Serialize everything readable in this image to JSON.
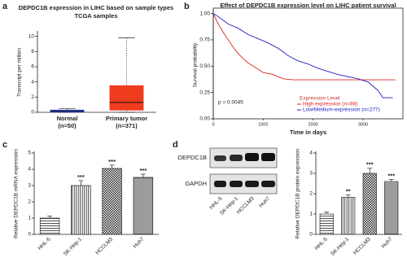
{
  "chart_data": [
    {
      "type": "box",
      "label": "a",
      "title": "DEPDC1B expression in LIHC based on sample types",
      "subtitle": "TCGA samples",
      "ylabel": "Transcript per million",
      "categories": [
        "Normal",
        "Primary tumor"
      ],
      "sample_sizes": [
        "(n=50)",
        "(n=371)"
      ],
      "boxes": [
        {
          "min": 0,
          "q1": 0.05,
          "median": 0.15,
          "q3": 0.28,
          "max": 0.5
        },
        {
          "min": 0,
          "q1": 0.3,
          "median": 1.3,
          "q3": 3.5,
          "max": 9.8
        }
      ],
      "colors": [
        "#2b3fc0",
        "#f03c1e"
      ],
      "ylim": [
        0,
        10.5
      ],
      "yticks": [
        0,
        2,
        4,
        6,
        8,
        10
      ]
    },
    {
      "type": "line",
      "label": "b",
      "title": "Effect of DEPDC1B expression level on LIHC patient survival",
      "xlabel": "Time in days",
      "ylabel": "Survival probability",
      "annotation": "p = 0.0045",
      "legend_title": "Expression Level",
      "series": [
        {
          "name": "High expression (n=88)",
          "color": "#e02020",
          "x": [
            0,
            100,
            200,
            300,
            400,
            500,
            600,
            700,
            800,
            900,
            1000,
            1200,
            1400,
            1600,
            2000,
            2500,
            3000,
            3650
          ],
          "values": [
            1,
            0.9,
            0.82,
            0.75,
            0.68,
            0.62,
            0.57,
            0.53,
            0.5,
            0.47,
            0.44,
            0.42,
            0.38,
            0.37,
            0.37,
            0.37,
            0.37,
            0.37
          ]
        },
        {
          "name": "Low/Medium-expression (n=277)",
          "color": "#2020c0",
          "x": [
            0,
            100,
            300,
            500,
            700,
            900,
            1100,
            1300,
            1500,
            1700,
            1900,
            2100,
            2300,
            2500,
            2700,
            2900,
            3100,
            3300,
            3400,
            3600
          ],
          "values": [
            1,
            0.97,
            0.9,
            0.86,
            0.8,
            0.76,
            0.72,
            0.67,
            0.6,
            0.55,
            0.52,
            0.48,
            0.45,
            0.42,
            0.4,
            0.38,
            0.35,
            0.27,
            0.2,
            0.2
          ]
        }
      ],
      "xlim": [
        0,
        3800
      ],
      "xticks": [
        0,
        1000,
        2000,
        3000
      ],
      "ylim": [
        0,
        1.02
      ],
      "yticks": [
        {
          "value": 0,
          "label": "0.00"
        },
        {
          "value": 0.25,
          "label": "0.25"
        },
        {
          "value": 0.5,
          "label": "0.50"
        },
        {
          "value": 0.75,
          "label": "0.75"
        },
        {
          "value": 1,
          "label": "1.00"
        }
      ]
    },
    {
      "type": "bar",
      "label": "c",
      "ylabel": "Relative DEPDC1B mRNA expression",
      "categories": [
        "HHL-5",
        "SK-Hep-1",
        "HCCLM3",
        "Huh7"
      ],
      "values": [
        1,
        3.0,
        4.05,
        3.5
      ],
      "errors": [
        0.12,
        0.3,
        0.2,
        0.2
      ],
      "significance": [
        null,
        "***",
        "***",
        "***"
      ],
      "ylim": [
        0,
        5
      ],
      "yticks": [
        0,
        1,
        2,
        3,
        4,
        5
      ]
    },
    {
      "type": "bar",
      "label": "d",
      "ylabel": "Relative DEPDC1B protein expression",
      "categories": [
        "HHL-5",
        "SK-Hep-1",
        "HCCLM3",
        "Huh7"
      ],
      "values": [
        1,
        1.82,
        3.0,
        2.6
      ],
      "errors": [
        0.1,
        0.12,
        0.25,
        0.1
      ],
      "significance": [
        null,
        "**",
        "***",
        "***"
      ],
      "blot": {
        "rows": [
          "DEPDC1B",
          "GAPDH"
        ]
      },
      "ylim": [
        0,
        4
      ],
      "yticks": [
        0,
        1,
        2,
        3,
        4
      ]
    }
  ]
}
